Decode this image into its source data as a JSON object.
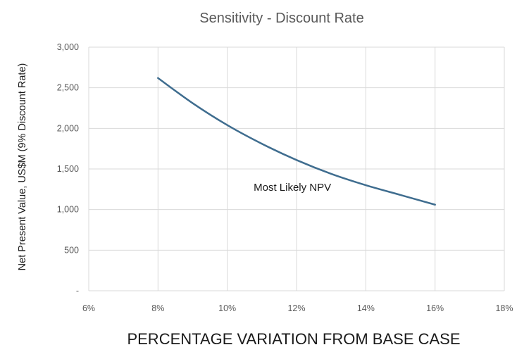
{
  "chart_data": {
    "type": "line",
    "title": "Sensitivity - Discount Rate",
    "xlabel": "PERCENTAGE VARIATION FROM BASE CASE",
    "ylabel": "Net Present Value, US$M (9% Discount Rate)",
    "x_tick_labels": [
      "6%",
      "8%",
      "10%",
      "12%",
      "14%",
      "16%",
      "18%"
    ],
    "x_ticks": [
      6,
      8,
      10,
      12,
      14,
      16,
      18
    ],
    "y_tick_labels": [
      "-",
      "500",
      "1,000",
      "1,500",
      "2,000",
      "2,500",
      "3,000"
    ],
    "y_ticks": [
      0,
      500,
      1000,
      1500,
      2000,
      2500,
      3000
    ],
    "xlim": [
      6,
      18
    ],
    "ylim": [
      0,
      3000
    ],
    "grid": true,
    "legend": "none",
    "series": [
      {
        "color": "#3f6d8f",
        "points": [
          {
            "x": 8,
            "y": 2620
          },
          {
            "x": 9,
            "y": 2310
          },
          {
            "x": 10,
            "y": 2040
          },
          {
            "x": 11,
            "y": 1810
          },
          {
            "x": 12,
            "y": 1610
          },
          {
            "x": 13,
            "y": 1440
          },
          {
            "x": 14,
            "y": 1300
          },
          {
            "x": 15,
            "y": 1180
          },
          {
            "x": 16,
            "y": 1060
          }
        ]
      }
    ],
    "annotations": [
      {
        "text": "Most Likely NPV",
        "x": 13,
        "y": 1230
      }
    ]
  }
}
